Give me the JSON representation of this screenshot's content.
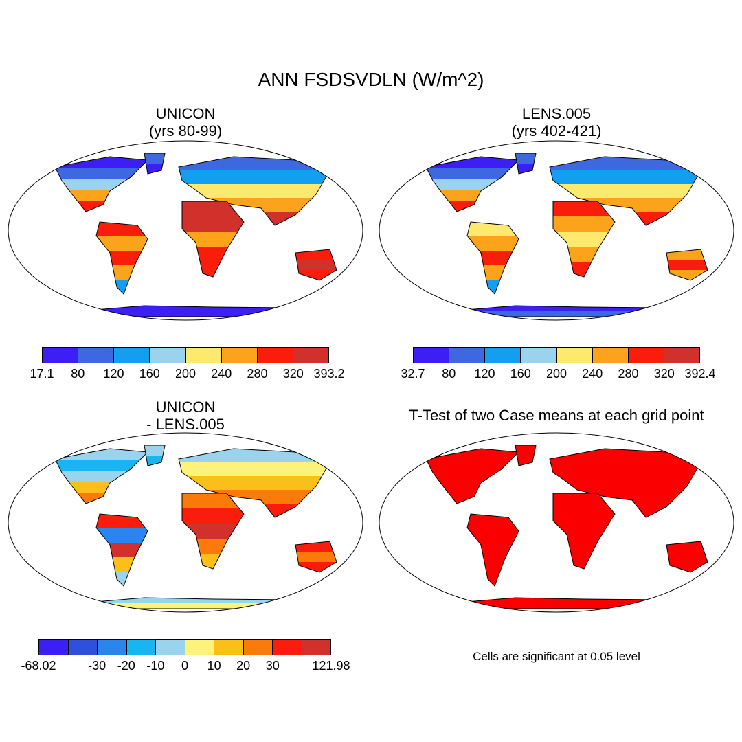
{
  "figure": {
    "title": "ANN FSDSVDLN (W/m^2)"
  },
  "panels": [
    {
      "id": "unicon",
      "title_line1": "UNICON",
      "title_line2": "(yrs 80-99)",
      "colorbar": {
        "colors": [
          "#3c1ff5",
          "#3e68e0",
          "#129ff0",
          "#9ad3ee",
          "#fde96e",
          "#fba31a",
          "#fa1d0c",
          "#d1302b"
        ],
        "labels": [
          "17.1",
          "80",
          "120",
          "160",
          "200",
          "240",
          "280",
          "320",
          "393.2"
        ]
      }
    },
    {
      "id": "lens",
      "title_line1": "LENS.005",
      "title_line2": "(yrs 402-421)",
      "colorbar": {
        "colors": [
          "#3c1ff5",
          "#3e68e0",
          "#129ff0",
          "#9ad3ee",
          "#fde96e",
          "#fba31a",
          "#fa1d0c",
          "#d1302b"
        ],
        "labels": [
          "32.7",
          "80",
          "120",
          "160",
          "200",
          "240",
          "280",
          "320",
          "392.4"
        ]
      }
    },
    {
      "id": "diff",
      "title_line1": "UNICON",
      "title_line2": "- LENS.005",
      "colorbar": {
        "colors": [
          "#3c1ff5",
          "#2f4fe0",
          "#2a86ee",
          "#19b4f2",
          "#9ad3ee",
          "#fdf27a",
          "#fbbf1a",
          "#fb7a0a",
          "#fa1d0c",
          "#d1302b"
        ],
        "labels": [
          "-68.02",
          "",
          "-30",
          "-20",
          "-10",
          "0",
          "10",
          "20",
          "30",
          "",
          "121.98"
        ]
      }
    },
    {
      "id": "ttest",
      "title_line1": "T-Test of two Case means at each grid point",
      "note": "Cells are significant at 0.05 level",
      "significant_color": "#fa0000"
    }
  ]
}
